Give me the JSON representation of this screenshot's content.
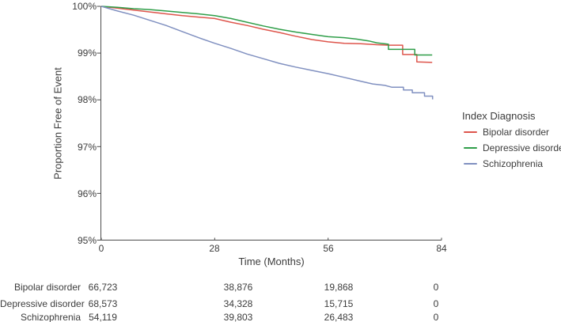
{
  "chart_data": {
    "type": "line",
    "subtype": "kaplan-meier-survival",
    "title": "",
    "xlabel": "Time (Months)",
    "ylabel": "Proportion Free of Event",
    "xlim": [
      0,
      84
    ],
    "ylim_percent": [
      95,
      100
    ],
    "grid": false,
    "axis_color": "#4d4d4d",
    "x_ticks": [
      "0",
      "28",
      "56",
      "84"
    ],
    "x_tick_values": [
      0,
      28,
      56,
      84
    ],
    "y_ticks": [
      "100%",
      "99%",
      "98%",
      "97%",
      "96%",
      "95%"
    ],
    "y_tick_values": [
      100,
      99,
      98,
      97,
      96,
      95
    ],
    "legend": {
      "title": "Index Diagnosis",
      "position": "right"
    },
    "series": [
      {
        "name": "Bipolar disorder",
        "color": "#DE554C",
        "points_month_percent": [
          [
            0,
            100
          ],
          [
            4,
            99.96
          ],
          [
            8,
            99.92
          ],
          [
            12,
            99.88
          ],
          [
            16,
            99.84
          ],
          [
            20,
            99.8
          ],
          [
            24,
            99.77
          ],
          [
            28,
            99.74
          ],
          [
            32,
            99.66
          ],
          [
            36,
            99.59
          ],
          [
            40,
            99.51
          ],
          [
            44,
            99.44
          ],
          [
            48,
            99.36
          ],
          [
            52,
            99.29
          ],
          [
            56,
            99.24
          ],
          [
            60,
            99.21
          ],
          [
            64,
            99.2
          ],
          [
            68,
            99.18
          ],
          [
            71,
            99.17
          ],
          [
            74.4,
            99.17
          ],
          [
            74.4,
            98.97
          ],
          [
            77.9,
            98.97
          ],
          [
            77.9,
            98.81
          ],
          [
            81.7,
            98.8
          ]
        ]
      },
      {
        "name": "Depressive disorder",
        "color": "#2F9E49",
        "points_month_percent": [
          [
            0,
            100
          ],
          [
            4,
            99.98
          ],
          [
            8,
            99.95
          ],
          [
            12,
            99.93
          ],
          [
            16,
            99.9
          ],
          [
            20,
            99.87
          ],
          [
            24,
            99.84
          ],
          [
            28,
            99.8
          ],
          [
            32,
            99.74
          ],
          [
            36,
            99.66
          ],
          [
            40,
            99.58
          ],
          [
            44,
            99.51
          ],
          [
            48,
            99.45
          ],
          [
            52,
            99.4
          ],
          [
            56,
            99.35
          ],
          [
            60,
            99.33
          ],
          [
            63,
            99.3
          ],
          [
            66,
            99.26
          ],
          [
            68,
            99.22
          ],
          [
            70.9,
            99.19
          ],
          [
            70.9,
            99.08
          ],
          [
            77.4,
            99.08
          ],
          [
            77.4,
            98.96
          ],
          [
            81.7,
            98.96
          ]
        ]
      },
      {
        "name": "Schizophrenia",
        "color": "#8090C0",
        "points_month_percent": [
          [
            0,
            100
          ],
          [
            4,
            99.9
          ],
          [
            8,
            99.81
          ],
          [
            12,
            99.7
          ],
          [
            16,
            99.59
          ],
          [
            20,
            99.46
          ],
          [
            24,
            99.33
          ],
          [
            28,
            99.21
          ],
          [
            32,
            99.1
          ],
          [
            36,
            98.98
          ],
          [
            40,
            98.88
          ],
          [
            44,
            98.78
          ],
          [
            48,
            98.7
          ],
          [
            52,
            98.63
          ],
          [
            56,
            98.56
          ],
          [
            60,
            98.48
          ],
          [
            64,
            98.4
          ],
          [
            67,
            98.34
          ],
          [
            70,
            98.31
          ],
          [
            71.7,
            98.27
          ],
          [
            74.6,
            98.27
          ],
          [
            74.6,
            98.21
          ],
          [
            76.8,
            98.21
          ],
          [
            76.8,
            98.15
          ],
          [
            79.8,
            98.15
          ],
          [
            79.8,
            98.08
          ],
          [
            81.8,
            98.08
          ],
          [
            81.8,
            98.01
          ]
        ]
      }
    ],
    "risk_table": {
      "time_points": [
        0,
        28,
        56,
        84
      ],
      "rows": [
        {
          "label": "Bipolar disorder",
          "counts": [
            "66,723",
            "38,876",
            "19,868",
            "0"
          ]
        },
        {
          "label": "Depressive disorder",
          "counts": [
            "68,573",
            "34,328",
            "15,715",
            "0"
          ]
        },
        {
          "label": "Schizophrenia",
          "counts": [
            "54,119",
            "39,803",
            "26,483",
            "0"
          ]
        }
      ]
    }
  }
}
